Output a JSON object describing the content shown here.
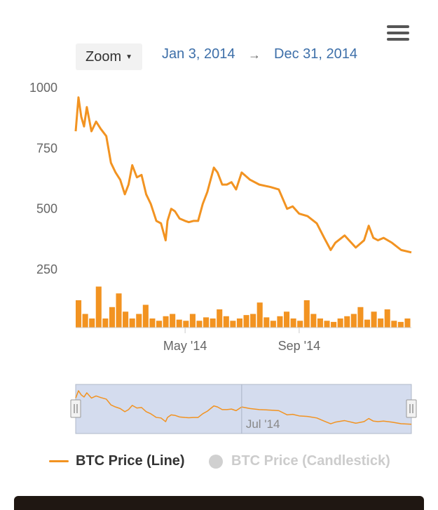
{
  "toolbar": {
    "zoom_label": "Zoom"
  },
  "range": {
    "from": "Jan 3, 2014",
    "arrow": "→",
    "to": "Dec 31, 2014"
  },
  "colors": {
    "line": "#f29321",
    "navigator_bg": "#ccd6eb",
    "link": "#3d6fa9"
  },
  "icons": {
    "menu": "hamburger-icon",
    "zoom_caret": "caret-down-icon",
    "navigator_handle": "grip-icon"
  },
  "legend": {
    "line_label": "BTC Price (Line)",
    "candle_label": "BTC Price (Candlestick)"
  },
  "chart_data": {
    "type": "line",
    "title": "",
    "yticks": [
      250,
      500,
      750,
      1000
    ],
    "ylim": [
      180,
      1000
    ],
    "xticks": [
      "May '14",
      "Sep '14"
    ],
    "navigator_tick": "Jul '14",
    "series": [
      {
        "name": "BTC Price (Line)",
        "x": [
          "2014-01-03",
          "2014-01-06",
          "2014-01-09",
          "2014-01-12",
          "2014-01-15",
          "2014-01-20",
          "2014-01-25",
          "2014-01-30",
          "2014-02-05",
          "2014-02-10",
          "2014-02-15",
          "2014-02-20",
          "2014-02-25",
          "2014-03-01",
          "2014-03-05",
          "2014-03-10",
          "2014-03-15",
          "2014-03-20",
          "2014-03-25",
          "2014-03-31",
          "2014-04-05",
          "2014-04-10",
          "2014-04-12",
          "2014-04-16",
          "2014-04-20",
          "2014-04-25",
          "2014-05-01",
          "2014-05-05",
          "2014-05-10",
          "2014-05-15",
          "2014-05-20",
          "2014-05-25",
          "2014-06-01",
          "2014-06-05",
          "2014-06-10",
          "2014-06-15",
          "2014-06-20",
          "2014-06-25",
          "2014-07-01",
          "2014-07-10",
          "2014-07-20",
          "2014-08-01",
          "2014-08-10",
          "2014-08-19",
          "2014-08-25",
          "2014-09-01",
          "2014-09-10",
          "2014-09-20",
          "2014-09-28",
          "2014-10-05",
          "2014-10-10",
          "2014-10-20",
          "2014-11-01",
          "2014-11-10",
          "2014-11-15",
          "2014-11-20",
          "2014-11-25",
          "2014-12-01",
          "2014-12-10",
          "2014-12-20",
          "2014-12-31"
        ],
        "y": [
          820,
          960,
          880,
          840,
          920,
          820,
          860,
          830,
          800,
          690,
          650,
          620,
          560,
          600,
          680,
          630,
          640,
          560,
          520,
          450,
          440,
          370,
          450,
          500,
          490,
          460,
          450,
          445,
          450,
          450,
          520,
          570,
          670,
          650,
          600,
          600,
          610,
          580,
          650,
          620,
          600,
          590,
          580,
          500,
          510,
          480,
          470,
          440,
          380,
          330,
          360,
          390,
          340,
          370,
          430,
          380,
          370,
          380,
          360,
          330,
          320
        ]
      }
    ],
    "volume": [
      120,
      60,
      40,
      180,
      40,
      90,
      150,
      70,
      40,
      60,
      100,
      40,
      30,
      50,
      60,
      35,
      30,
      60,
      30,
      45,
      40,
      80,
      50,
      30,
      40,
      55,
      60,
      110,
      45,
      30,
      50,
      70,
      40,
      30,
      120,
      60,
      40,
      30,
      25,
      40,
      50,
      60,
      90,
      35,
      70,
      40,
      80,
      30,
      25,
      40
    ],
    "legend_position": "bottom",
    "grid": false
  }
}
